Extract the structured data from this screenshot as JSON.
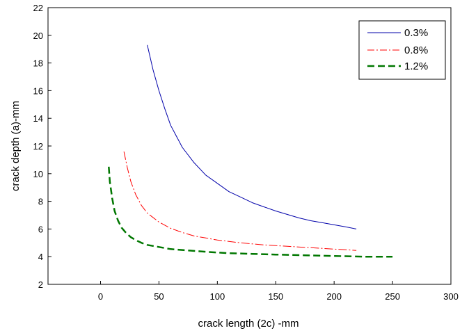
{
  "chart_data": {
    "type": "line",
    "xlabel": "crack length (2c) -mm",
    "ylabel": "crack depth (a)-mm",
    "xlim": [
      -45,
      300
    ],
    "ylim": [
      2,
      22
    ],
    "xticks": [
      0,
      50,
      100,
      150,
      200,
      250,
      300
    ],
    "yticks": [
      2,
      4,
      6,
      8,
      10,
      12,
      14,
      16,
      18,
      20,
      22
    ],
    "grid": false,
    "legend_position": "top-right",
    "series": [
      {
        "name": "0.3%",
        "color": "#0000aa",
        "dash": "solid",
        "x": [
          40,
          45,
          50,
          55,
          60,
          70,
          80,
          90,
          100,
          110,
          120,
          130,
          140,
          150,
          160,
          170,
          180,
          190,
          200,
          210,
          219
        ],
        "y": [
          19.3,
          17.5,
          16.0,
          14.7,
          13.5,
          11.9,
          10.8,
          9.9,
          9.3,
          8.7,
          8.3,
          7.9,
          7.6,
          7.3,
          7.05,
          6.8,
          6.6,
          6.45,
          6.3,
          6.15,
          6.0
        ]
      },
      {
        "name": "0.8%",
        "color": "#ff0000",
        "dash": "dash-dot",
        "x": [
          20,
          23,
          26,
          30,
          35,
          40,
          50,
          60,
          70,
          80,
          90,
          100,
          120,
          140,
          160,
          180,
          200,
          219
        ],
        "y": [
          11.6,
          10.4,
          9.4,
          8.5,
          7.7,
          7.15,
          6.5,
          6.05,
          5.75,
          5.5,
          5.35,
          5.2,
          5.0,
          4.85,
          4.75,
          4.65,
          4.55,
          4.45
        ]
      },
      {
        "name": "1.2%",
        "color": "#007700",
        "dash": "dash",
        "x": [
          7,
          8,
          10,
          12,
          15,
          18,
          22,
          26,
          30,
          35,
          40,
          50,
          60,
          75,
          90,
          110,
          130,
          150,
          175,
          200,
          225,
          250
        ],
        "y": [
          10.5,
          9.4,
          8.2,
          7.3,
          6.6,
          6.1,
          5.7,
          5.4,
          5.2,
          5.0,
          4.85,
          4.7,
          4.55,
          4.45,
          4.35,
          4.25,
          4.2,
          4.15,
          4.1,
          4.05,
          4.0,
          4.0
        ]
      }
    ]
  }
}
